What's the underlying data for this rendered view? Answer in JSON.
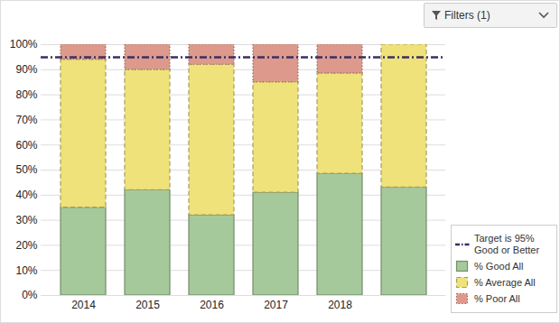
{
  "chart_data": {
    "type": "bar",
    "stacked": true,
    "categories": [
      "2014",
      "2015",
      "2016",
      "2017",
      "2018",
      null
    ],
    "series": [
      {
        "name": "% Good All",
        "color": "#a6c99c",
        "line_style": "solid",
        "values": [
          35,
          42,
          32,
          41,
          48.5,
          43
        ]
      },
      {
        "name": "% Average All",
        "color": "#efe27a",
        "line_style": "dashed",
        "values": [
          59,
          48,
          60,
          44,
          40,
          57
        ]
      },
      {
        "name": "% Poor All",
        "color": "#dd9a8c",
        "line_style": "dotted",
        "values": [
          6,
          10,
          8,
          15,
          11.5,
          0
        ]
      }
    ],
    "target": {
      "name": "Target is 95% Good or Better",
      "value": 95,
      "color": "#3b2f63",
      "line_style": "dashdot"
    },
    "ylim": [
      0,
      100
    ],
    "yticks": [
      {
        "value": 0,
        "label": "0%"
      },
      {
        "value": 10,
        "label": "10%"
      },
      {
        "value": 20,
        "label": "20%"
      },
      {
        "value": 30,
        "label": "30%"
      },
      {
        "value": 40,
        "label": "40%"
      },
      {
        "value": 50,
        "label": "50%"
      },
      {
        "value": 60,
        "label": "60%"
      },
      {
        "value": 70,
        "label": "70%"
      },
      {
        "value": 80,
        "label": "80%"
      },
      {
        "value": 90,
        "label": "90%"
      },
      {
        "value": 100,
        "label": "100%"
      }
    ],
    "grid": true,
    "legend": "lower right"
  },
  "toolbar": {
    "filter_button": "Filters (1)"
  }
}
